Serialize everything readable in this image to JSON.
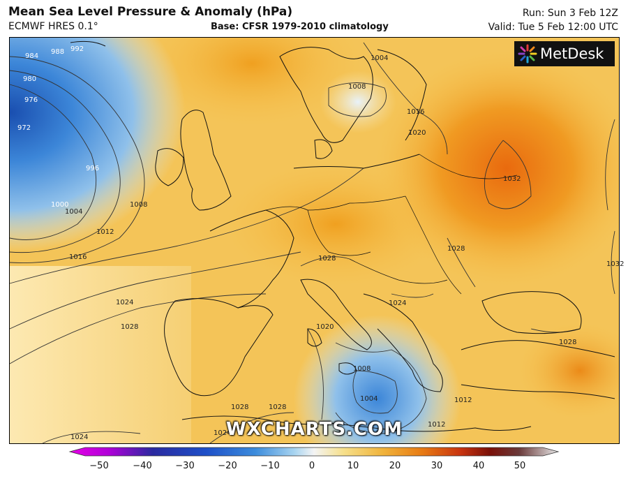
{
  "header": {
    "title": "Mean Sea Level Pressure & Anomaly (hPa)",
    "model": "ECMWF HRES 0.1°",
    "base": "Base: CFSR 1979-2010 climatology",
    "run": "Run: Sun 3 Feb 12Z",
    "valid": "Valid: Tue 5 Feb 12:00 UTC"
  },
  "brand": {
    "name": "MetDesk",
    "icon": "metdesk-starburst-icon"
  },
  "watermark": "WXCHARTS.COM",
  "isobar_labels": [
    "984",
    "988",
    "992",
    "980",
    "976",
    "972",
    "996",
    "1000",
    "1004",
    "1008",
    "1012",
    "1016",
    "1024",
    "1028",
    "1008",
    "1004",
    "1016",
    "1020",
    "1032",
    "1028",
    "1028",
    "1024",
    "1028",
    "1020",
    "1008",
    "1004",
    "1012",
    "1012",
    "1028",
    "1028",
    "1024",
    "1024",
    "1032"
  ],
  "legend": {
    "ticks": [
      "−50",
      "−40",
      "−30",
      "−20",
      "−10",
      "0",
      "10",
      "20",
      "30",
      "40",
      "50"
    ],
    "colors": [
      "#e600e6",
      "#8c00c8",
      "#2a2aa0",
      "#1e50c8",
      "#3c8cdc",
      "#8cc4ec",
      "#f0f0f0",
      "#f6e08c",
      "#f0b43c",
      "#e87c14",
      "#d04010",
      "#a01008",
      "#701818",
      "#a08888",
      "#e0e0e0"
    ]
  },
  "map": {
    "sea_color": "#f3c870",
    "low_colors": [
      "#1a4fb0",
      "#3c86d8",
      "#8fc0ea",
      "#d8ecf6"
    ],
    "high_colors": [
      "#f5c04a",
      "#f0a020",
      "#ea7a10"
    ],
    "coast_color": "#111111",
    "isobar_color": "#333333"
  }
}
